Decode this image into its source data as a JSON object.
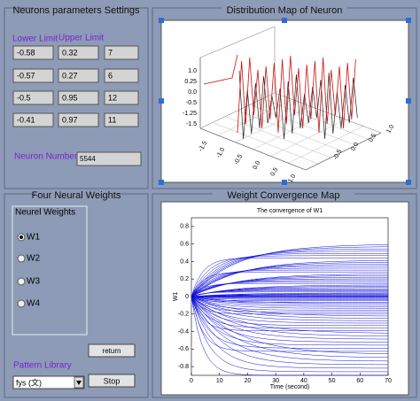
{
  "settings_panel": {
    "title": "Neurons parameters Settings",
    "lower_limit_label": "Lower Limit",
    "upper_limit_label": "Upper Limit",
    "rows": [
      [
        "-0.58",
        "0.32",
        "7"
      ],
      [
        "-0.57",
        "0.27",
        "6"
      ],
      [
        "-0.5",
        "0.95",
        "12"
      ],
      [
        "-0.41",
        "0.97",
        "11"
      ]
    ],
    "neuron_number_label": "Neuron Number",
    "neuron_number": "5544"
  },
  "distribution_panel": {
    "title": "Distribution Map of Neuron",
    "z_ticks": [
      "1.0",
      "0.25",
      "0.0",
      "-0.5",
      "-1.25",
      "-1.5"
    ],
    "x_ticks": [
      "-1.5",
      "-1.0",
      "-0.5",
      "0.0",
      "0.5",
      "1.0"
    ],
    "y_ticks": [
      "1.0",
      "0.5",
      "0.0",
      "-0.5"
    ]
  },
  "weights_panel": {
    "title": "Four Neural Weights",
    "group_title": "Neurel Weights",
    "options": [
      "W1",
      "W2",
      "W3",
      "W4"
    ],
    "selected": 0,
    "return_button": "return",
    "pattern_library_label": "Pattern Library",
    "pattern_select": "fys (文)",
    "stop_button": "Stop"
  },
  "convergence_panel": {
    "title": "Weight Convergence Map"
  },
  "chart_data": {
    "type": "line",
    "title": "The convergence of W1",
    "x_label": "Time (second)",
    "y_label": "W1",
    "xlim": [
      0,
      70
    ],
    "xticks": [
      0,
      10,
      20,
      30,
      40,
      50,
      60,
      70
    ],
    "ylim": [
      -0.9,
      0.9
    ],
    "yticks": [
      0.8,
      0.6,
      0.4,
      0.2,
      0,
      -0.2,
      -0.4,
      -0.6,
      -0.8
    ],
    "color": "#1010e0"
  }
}
